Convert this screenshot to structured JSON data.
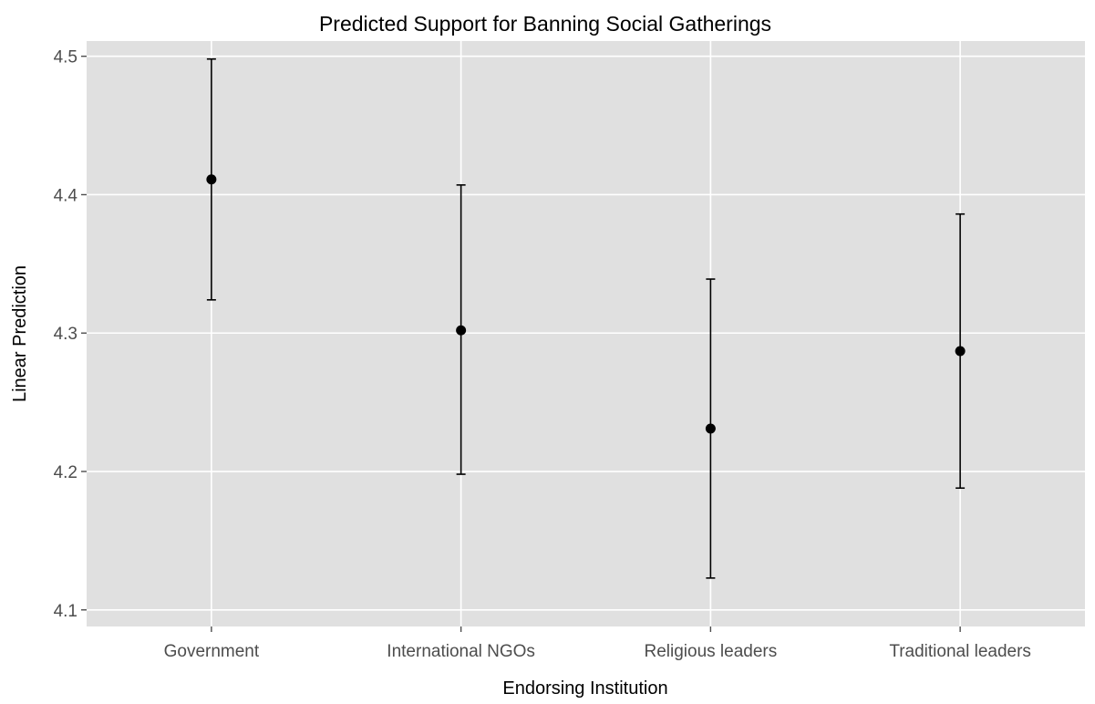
{
  "chart_data": {
    "type": "scatter",
    "title": "Predicted Support for Banning Social Gatherings",
    "xlabel": "Endorsing Institution",
    "ylabel": "Linear Prediction",
    "categories": [
      "Government",
      "International NGOs",
      "Religious leaders",
      "Traditional leaders"
    ],
    "values": [
      4.411,
      4.302,
      4.231,
      4.287
    ],
    "ci_lower": [
      4.324,
      4.198,
      4.123,
      4.188
    ],
    "ci_upper": [
      4.498,
      4.407,
      4.339,
      4.386
    ],
    "y_ticks": [
      4.1,
      4.2,
      4.3,
      4.4,
      4.5
    ],
    "y_tick_labels": [
      "4.1",
      "4.2",
      "4.3",
      "4.4",
      "4.5"
    ],
    "ylim": [
      4.088,
      4.511
    ],
    "grid": true,
    "panel_color": "#e0e0e0",
    "grid_color": "#ffffff",
    "point_color": "#000000"
  }
}
